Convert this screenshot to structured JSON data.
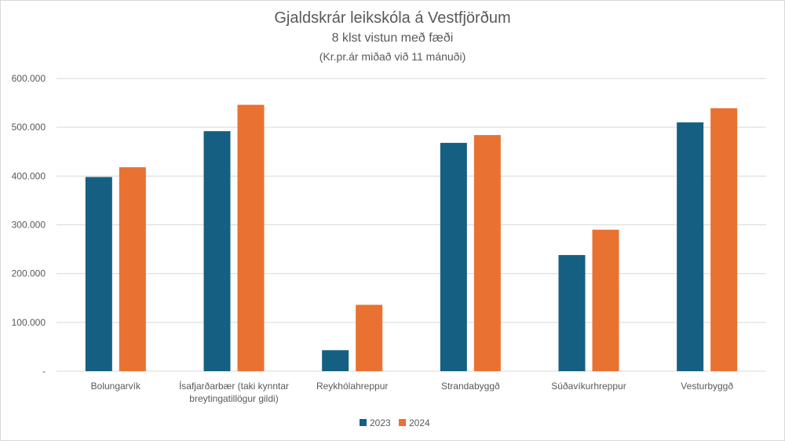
{
  "chart_data": {
    "type": "bar",
    "title": "Gjaldskrár leikskóla á Vestfjörðum",
    "subtitle": "8 klst vistun með fæði",
    "subtitle2": "(Kr.pr.ár miðað við 11 mánuði)",
    "categories": [
      [
        "Bolungarvík"
      ],
      [
        "Ísafjarðarbær (taki kynntar",
        "breytingatillögur gildi)"
      ],
      [
        "Reykhólahreppur"
      ],
      [
        "Strandabyggð"
      ],
      [
        "Súðavíkurhreppur"
      ],
      [
        "Vesturbyggð"
      ]
    ],
    "series": [
      {
        "name": "2023",
        "color": "#156082",
        "values": [
          398000,
          492000,
          43000,
          468000,
          238000,
          510000
        ]
      },
      {
        "name": "2024",
        "color": "#E97132",
        "values": [
          418000,
          546000,
          136000,
          484000,
          290000,
          539000
        ]
      }
    ],
    "ylim": [
      0,
      600000
    ],
    "yticks": [
      0,
      100000,
      200000,
      300000,
      400000,
      500000,
      600000
    ],
    "ytick_labels": [
      "-",
      "100.000",
      "200.000",
      "300.000",
      "400.000",
      "500.000",
      "600.000"
    ],
    "grid": true,
    "legend_position": "bottom"
  }
}
